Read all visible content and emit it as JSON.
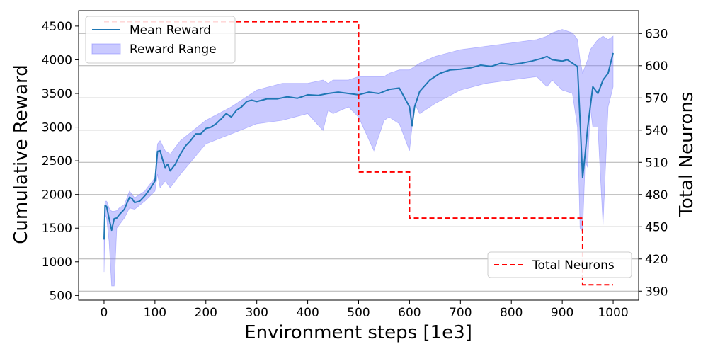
{
  "chart_data": {
    "type": "line",
    "xlabel": "Environment steps [1e3]",
    "ylabel": "Cumulative Reward",
    "y2label": "Total Neurons",
    "xlim": [
      -50,
      1050
    ],
    "ylim": [
      430,
      4730
    ],
    "y2lim": [
      381.6,
      651.3
    ],
    "xticks": [
      0,
      100,
      200,
      300,
      400,
      500,
      600,
      700,
      800,
      900,
      1000
    ],
    "yticks": [
      500,
      1000,
      1500,
      2000,
      2500,
      3000,
      3500,
      4000,
      4500
    ],
    "y2ticks": [
      390,
      420,
      450,
      480,
      510,
      540,
      570,
      600,
      630
    ],
    "grid": "horizontal lines at right-axis ticks",
    "legend_placement": [
      "top-left",
      "bottom-right"
    ],
    "series": [
      {
        "name": "Mean Reward",
        "axis": "left",
        "color": "#1f77b4",
        "x": [
          0,
          2,
          5,
          10,
          15,
          20,
          25,
          30,
          40,
          50,
          55,
          60,
          70,
          80,
          90,
          100,
          105,
          110,
          115,
          120,
          125,
          130,
          140,
          150,
          160,
          170,
          180,
          190,
          200,
          210,
          220,
          230,
          240,
          250,
          260,
          270,
          280,
          290,
          300,
          320,
          340,
          360,
          380,
          400,
          420,
          440,
          460,
          480,
          500,
          520,
          540,
          560,
          580,
          600,
          605,
          610,
          620,
          640,
          660,
          680,
          700,
          720,
          740,
          760,
          780,
          800,
          820,
          840,
          860,
          870,
          880,
          900,
          910,
          920,
          930,
          935,
          940,
          945,
          950,
          955,
          960,
          970,
          980,
          990,
          1000
        ],
        "values": [
          1330,
          1840,
          1820,
          1640,
          1470,
          1640,
          1650,
          1700,
          1780,
          1960,
          1940,
          1880,
          1900,
          1980,
          2080,
          2200,
          2640,
          2650,
          2520,
          2400,
          2450,
          2350,
          2450,
          2600,
          2720,
          2800,
          2900,
          2900,
          2980,
          3000,
          3050,
          3120,
          3200,
          3150,
          3250,
          3300,
          3380,
          3400,
          3380,
          3420,
          3420,
          3450,
          3430,
          3480,
          3470,
          3500,
          3520,
          3500,
          3480,
          3520,
          3500,
          3560,
          3580,
          3300,
          3020,
          3300,
          3530,
          3700,
          3800,
          3850,
          3860,
          3880,
          3920,
          3900,
          3950,
          3930,
          3950,
          3980,
          4020,
          4050,
          4000,
          3980,
          4000,
          3950,
          3900,
          3100,
          2250,
          2600,
          3000,
          3300,
          3600,
          3500,
          3700,
          3800,
          4100
        ]
      },
      {
        "name": "Reward Range",
        "axis": "left",
        "type": "band",
        "color": "#7b7bff",
        "x": [
          0,
          2,
          5,
          10,
          15,
          20,
          25,
          30,
          40,
          50,
          60,
          80,
          100,
          105,
          110,
          120,
          130,
          150,
          200,
          250,
          300,
          350,
          400,
          430,
          440,
          450,
          480,
          500,
          530,
          550,
          560,
          580,
          600,
          610,
          620,
          650,
          700,
          750,
          800,
          850,
          870,
          880,
          900,
          920,
          930,
          935,
          940,
          945,
          950,
          955,
          960,
          970,
          980,
          990,
          1000
        ],
        "upper": [
          1400,
          1900,
          1900,
          1800,
          1750,
          1750,
          1760,
          1800,
          1850,
          2050,
          1950,
          2050,
          2250,
          2750,
          2800,
          2650,
          2600,
          2800,
          3100,
          3300,
          3550,
          3650,
          3650,
          3700,
          3650,
          3700,
          3700,
          3750,
          3750,
          3750,
          3800,
          3850,
          3850,
          3900,
          3950,
          4050,
          4150,
          4200,
          4250,
          4300,
          4350,
          4400,
          4450,
          4400,
          4300,
          4000,
          3800,
          3900,
          4000,
          4150,
          4200,
          4300,
          4350,
          4300,
          4350
        ],
        "lower": [
          850,
          1700,
          1650,
          1300,
          640,
          640,
          1500,
          1550,
          1650,
          1800,
          1780,
          1900,
          2050,
          2300,
          2100,
          2200,
          2100,
          2300,
          2750,
          2900,
          3050,
          3100,
          3200,
          2950,
          3250,
          3200,
          3300,
          3150,
          2650,
          3100,
          3150,
          3050,
          2650,
          3350,
          3200,
          3350,
          3550,
          3650,
          3700,
          3750,
          3600,
          3700,
          3550,
          3500,
          3000,
          1500,
          1450,
          2500,
          2400,
          3300,
          3000,
          3000,
          1550,
          3300,
          3600
        ]
      },
      {
        "name": "Total Neurons",
        "axis": "right",
        "style": "dashed",
        "color": "#ff0000",
        "x": [
          0,
          500,
          500,
          600,
          600,
          940,
          940,
          1000
        ],
        "values": [
          641,
          641,
          501,
          501,
          458,
          458,
          396,
          396
        ]
      }
    ]
  },
  "legend_left": {
    "items": [
      "Mean Reward",
      "Reward Range"
    ]
  },
  "legend_right": {
    "items": [
      "Total Neurons"
    ]
  }
}
